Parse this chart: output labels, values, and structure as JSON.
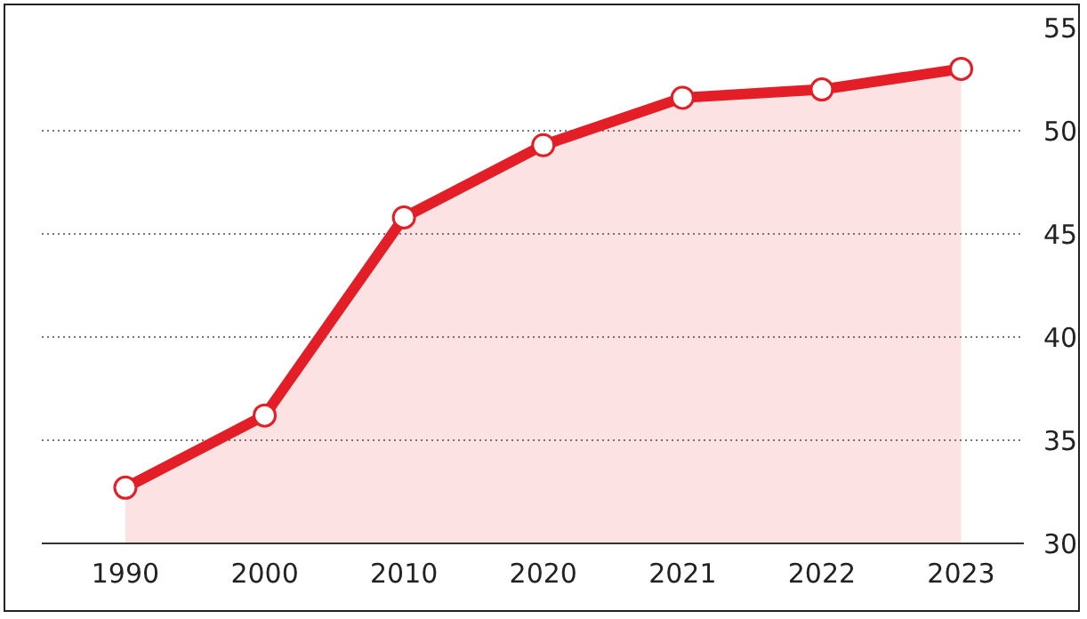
{
  "chart_data": {
    "type": "area",
    "categories": [
      "1990",
      "2000",
      "2010",
      "2020",
      "2021",
      "2022",
      "2023"
    ],
    "series": [
      {
        "color": "#e41e26",
        "values": [
          32.7,
          36.2,
          45.8,
          49.3,
          51.6,
          52.0,
          53.0
        ]
      }
    ],
    "ylim": [
      30,
      55
    ],
    "yticks": [
      30,
      35,
      40,
      45,
      50,
      55
    ],
    "grid": "y",
    "marker": "circle",
    "line_style": "solid"
  }
}
